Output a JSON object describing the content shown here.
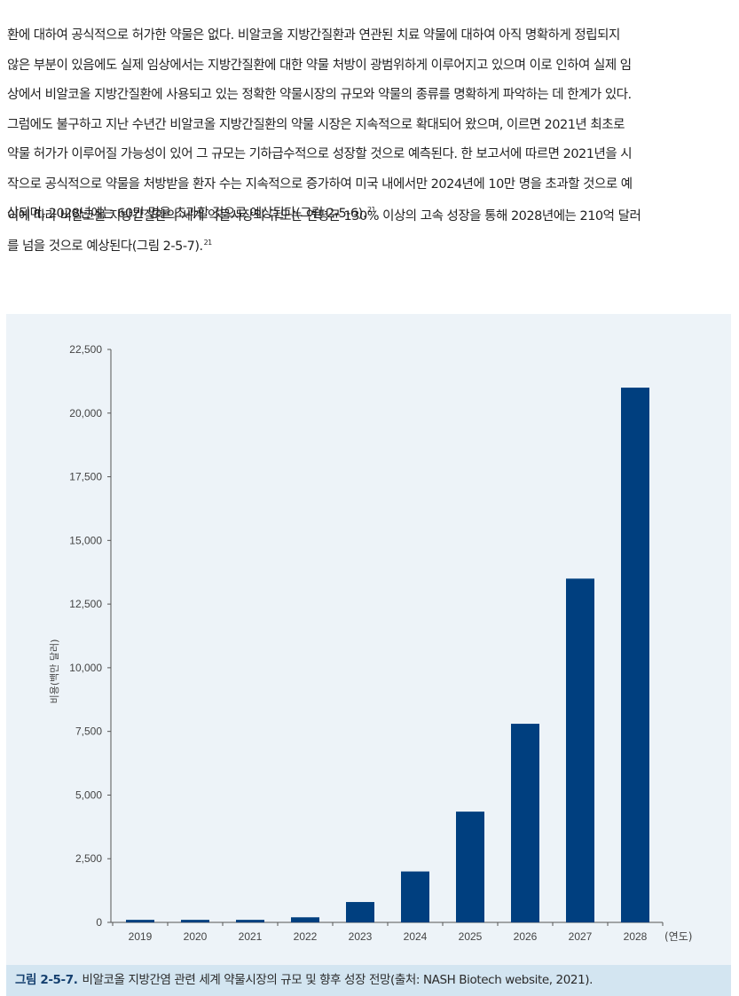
{
  "body_text": {
    "paragraph_1_lines": [
      "환에 대하여 공식적으로 허가한 약물은 없다. 비알코올 지방간질환과 연관된 치료 약물에 대하여 아직 명확하게 정립되지",
      "않은 부분이 있음에도 실제 임상에서는 지방간질환에 대한 약물 처방이 광범위하게 이루어지고 있으며 이로 인하여 실제 임",
      "상에서 비알코올 지방간질환에 사용되고 있는 정확한 약물시장의 규모와 약물의 종류를 명확하게 파악하는 데 한계가 있다.",
      "그럼에도 불구하고 지난 수년간 비알코올 지방간질환의 약물 시장은 지속적으로 확대되어 왔으며, 이르면 2021년 최초로",
      "약물 허가가 이루어질 가능성이 있어 그 규모는 기하급수적으로 성장할 것으로 예측된다. 한 보고서에 따르면 2021년을 시",
      "작으로 공식적으로 약물을 처방받을 환자 수는 지속적으로 증가하여 미국 내에서만 2024년에 10만 명을 초과할 것으로 예",
      "상되며, 2028년에는 60만 명을 초과할 것으로 예상된다(그림 2-5-6)."
    ],
    "paragraph_1_ref": "21",
    "paragraph_2_lines": [
      "이에 따라 비알코올 지방간질환의 세계 약물시장의 규모는 연평균 130% 이상의 고속 성장을 통해 2028년에는 210억 달러",
      "를 넘을 것으로 예상된다(그림 2-5-7)."
    ],
    "paragraph_2_ref": "21"
  },
  "caption": {
    "figure_number": "그림 2-5-7.",
    "text": "비알코올 지방간염 관련 세계 약물시장의 규모 및 향후 성장 전망(출처: NASH Biotech website, 2021)."
  },
  "colors": {
    "bar": "#003f7f",
    "figure_background": "#edf3f8",
    "caption_background": "#d3e5f1",
    "caption_number": "#15406f"
  },
  "chart_data": {
    "type": "bar",
    "categories": [
      "2019",
      "2020",
      "2021",
      "2022",
      "2023",
      "2024",
      "2025",
      "2026",
      "2027",
      "2028"
    ],
    "values": [
      100,
      100,
      100,
      200,
      800,
      2000,
      4350,
      7800,
      13500,
      21000
    ],
    "title": "",
    "xlabel": "(연도)",
    "ylabel": "비용(백만 달러)",
    "ylim": [
      0,
      22500
    ],
    "yticks": [
      0,
      2500,
      5000,
      7500,
      10000,
      12500,
      15000,
      17500,
      20000,
      22500
    ],
    "ytick_labels": [
      "0",
      "2,500",
      "5,000",
      "7,500",
      "10,000",
      "12,500",
      "15,000",
      "17,500",
      "20,000",
      "22,500"
    ],
    "grid": false,
    "legend": "none"
  }
}
